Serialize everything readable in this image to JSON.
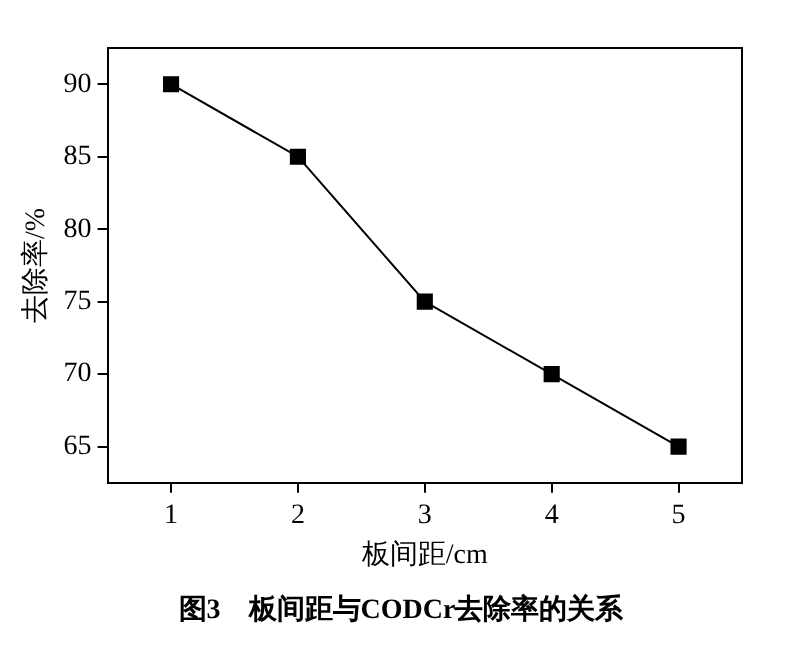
{
  "chart_data": {
    "type": "line",
    "xlabel": "板间距/cm",
    "ylabel": "去除率/%",
    "annotations": [
      "图3　板间距与CODCr去除率的关系"
    ],
    "x": [
      1,
      2,
      3,
      4,
      5
    ],
    "series": [
      {
        "color": "#000000",
        "values": [
          90,
          85,
          75,
          70,
          65
        ]
      }
    ],
    "xlim": [
      0.5,
      5.5
    ],
    "xticks": [
      1,
      2,
      3,
      4,
      5
    ],
    "ylim": [
      62.5,
      92.5
    ],
    "yticks": [
      65,
      70,
      75,
      80,
      85,
      90
    ],
    "grid": false,
    "legend": false,
    "marker": "square",
    "line_style": "solid"
  }
}
